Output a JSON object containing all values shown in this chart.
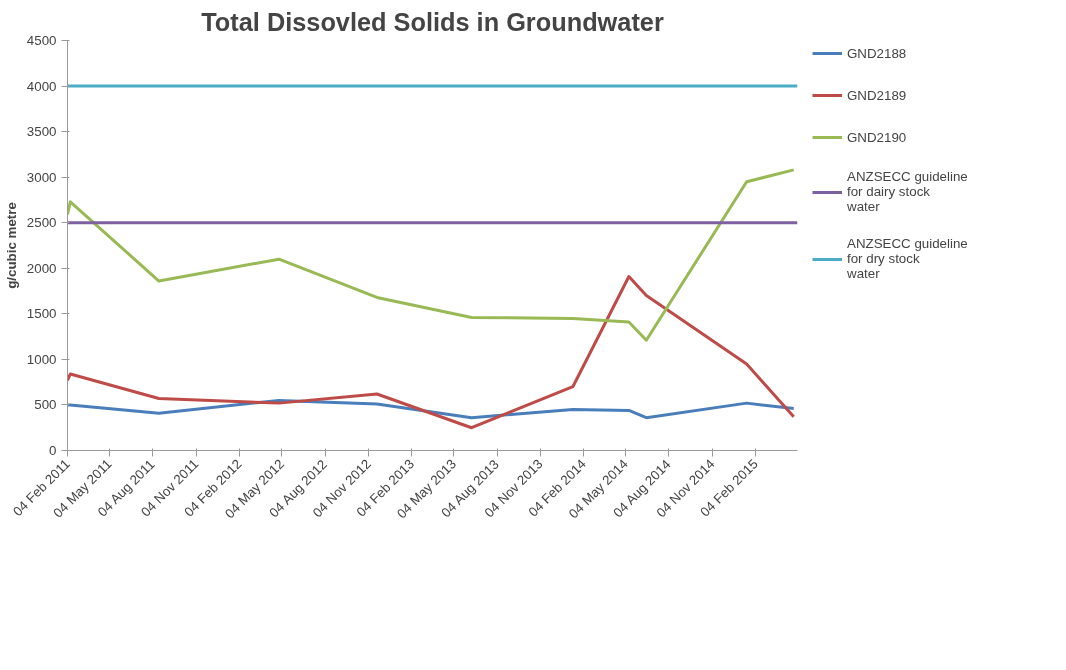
{
  "chart_data": {
    "type": "line",
    "title": "Total Dissovled Solids in Groundwater",
    "ylabel": "g/cubic metre",
    "x": [
      "2011-02-04",
      "2011-02-10",
      "2011-08-17",
      "2012-04-28",
      "2012-11-22",
      "2013-06-11",
      "2014-01-12",
      "2014-05-11",
      "2014-06-17",
      "2015-01-16",
      "2015-04-26"
    ],
    "series": [
      {
        "name": "GND2188",
        "color": "#4a7ebb",
        "values": [
          500,
          500,
          410,
          550,
          510,
          360,
          450,
          440,
          360,
          520,
          460
        ]
      },
      {
        "name": "GND2189",
        "color": "#be4b48",
        "values": [
          770,
          840,
          570,
          520,
          620,
          250,
          700,
          1910,
          1700,
          950,
          370
        ]
      },
      {
        "name": "GND2190",
        "color": "#98b954",
        "values": [
          2590,
          2730,
          1860,
          2100,
          1680,
          1460,
          1450,
          1410,
          1210,
          2950,
          3080
        ]
      }
    ],
    "ref_lines": [
      {
        "axis": "y",
        "value": 2500,
        "label": "ANZSECC guideline for dairy stock water",
        "color": "#7d60a0"
      },
      {
        "axis": "y",
        "value": 4000,
        "label": "ANZSECC guideline for dry stock water",
        "color": "#4bacc6"
      }
    ],
    "xlim": [
      "2011-02-04",
      "2015-05-04"
    ],
    "xticks": [
      {
        "value": "2011-02-04",
        "label": "04 Feb 2011"
      },
      {
        "value": "2011-05-04",
        "label": "04 May 2011"
      },
      {
        "value": "2011-08-04",
        "label": "04 Aug 2011"
      },
      {
        "value": "2011-11-04",
        "label": "04 Nov 2011"
      },
      {
        "value": "2012-02-04",
        "label": "04 Feb 2012"
      },
      {
        "value": "2012-05-04",
        "label": "04 May 2012"
      },
      {
        "value": "2012-08-04",
        "label": "04 Aug 2012"
      },
      {
        "value": "2012-11-04",
        "label": "04 Nov 2012"
      },
      {
        "value": "2013-02-04",
        "label": "04 Feb 2013"
      },
      {
        "value": "2013-05-04",
        "label": "04 May 2013"
      },
      {
        "value": "2013-08-04",
        "label": "04 Aug 2013"
      },
      {
        "value": "2013-11-04",
        "label": "04 Nov 2013"
      },
      {
        "value": "2014-02-04",
        "label": "04 Feb 2014"
      },
      {
        "value": "2014-05-04",
        "label": "04 May 2014"
      },
      {
        "value": "2014-08-04",
        "label": "04 Aug 2014"
      },
      {
        "value": "2014-11-04",
        "label": "04 Nov 2014"
      },
      {
        "value": "2015-02-04",
        "label": "04 Feb 2015"
      }
    ],
    "ylim": [
      0,
      4500
    ],
    "yticks": [
      0,
      500,
      1000,
      1500,
      2000,
      2500,
      3000,
      3500,
      4000,
      4500
    ],
    "grid": false,
    "legend": "right",
    "marker": "none",
    "line_style": "solid"
  }
}
